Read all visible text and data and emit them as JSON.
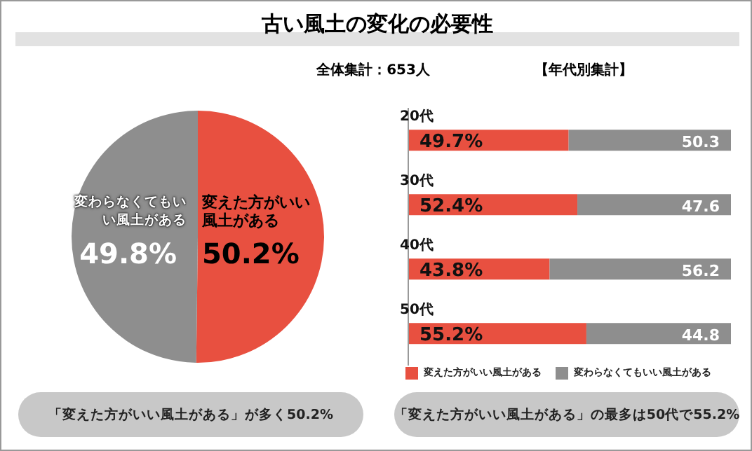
{
  "chart_data": [
    {
      "type": "pie",
      "title": "古い風土の変化の必要性",
      "subtitle": "全体集計：653人",
      "categories": [
        "変えた方がいい風土がある",
        "変わらなくてもいい風土がある"
      ],
      "values": [
        50.2,
        49.8
      ],
      "colors": [
        "#e85040",
        "#8e8e8e"
      ],
      "value_labels": [
        "50.2%",
        "49.8%"
      ],
      "legend": false,
      "annotations": [
        "「変えた方がいい風土がある」が多く50.2%"
      ]
    },
    {
      "type": "bar",
      "title": "【年代別集計】",
      "orientation": "horizontal",
      "stacked": true,
      "categories": [
        "20代",
        "30代",
        "40代",
        "50代"
      ],
      "series": [
        {
          "name": "変えた方がいい風土がある",
          "color": "#e85040",
          "values": [
            49.7,
            52.4,
            43.8,
            55.2
          ],
          "value_labels": [
            "49.7%",
            "52.4%",
            "43.8%",
            "55.2%"
          ]
        },
        {
          "name": "変わらなくてもいい風土がある",
          "color": "#8e8e8e",
          "values": [
            50.3,
            47.6,
            56.2,
            44.8
          ],
          "value_labels": [
            "50.3",
            "47.6",
            "56.2",
            "44.8"
          ]
        }
      ],
      "legend": "bottom",
      "grid": false,
      "tick_labels": false,
      "annotations": [
        "「変えた方がいい風土がある」の最多は50代で55.2%"
      ]
    }
  ]
}
